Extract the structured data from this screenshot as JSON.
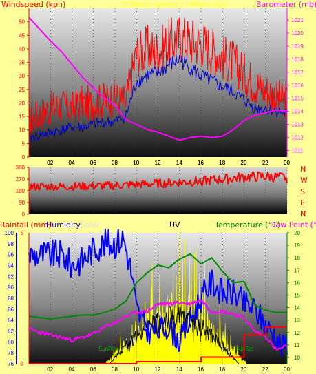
{
  "top_chart": {
    "windspeed_label": "Windspeed (kph)",
    "overlay_label": "10 Minute Average / 1 Minute Gust",
    "barometer_label": "Barometer (mb)",
    "colors": {
      "gust": "#ff0000",
      "avg": "#0000cc",
      "baro": "#ff00ff"
    }
  },
  "dir_chart": {
    "letters": [
      "N",
      "W",
      "S",
      "E",
      "N"
    ]
  },
  "bottom_chart": {
    "rainfall_label": "Rainfall (mm)",
    "humidity_label": "Humidity",
    "solar_label": "Solar",
    "uv_label": "UV",
    "temperature_label": "Temperature (°C)",
    "dewpoint_label": "Dew Point (°C)",
    "sunrise_label": "SunRise",
    "sunset_label": "SunSet"
  },
  "chart_data": [
    {
      "type": "line",
      "title": "",
      "x_ticks": [
        "02",
        "04",
        "06",
        "08",
        "10",
        "12",
        "14",
        "16",
        "18",
        "20",
        "22",
        "00"
      ],
      "y_left_ticks": [
        "0",
        "5",
        "10",
        "15",
        "20",
        "25",
        "30",
        "35",
        "40",
        "45",
        "50"
      ],
      "ylim_left": [
        0,
        55
      ],
      "y_right_ticks": [
        "1011",
        "1012",
        "1013",
        "1014",
        "1015",
        "1016",
        "1017",
        "1018",
        "1019",
        "1020",
        "1021"
      ],
      "ylim_right": [
        1010.5,
        1021.9
      ],
      "xlim": [
        0,
        24
      ],
      "series": [
        {
          "name": "Windspeed",
          "axis": "left",
          "x": [
            0,
            1,
            2,
            3,
            4,
            5,
            6,
            7,
            8,
            9,
            9.5,
            10,
            11,
            12,
            13,
            14,
            15,
            16,
            17,
            18,
            19,
            20,
            21,
            22,
            23,
            24
          ],
          "values": [
            13,
            16,
            18,
            19,
            18,
            20,
            20,
            21,
            22,
            20,
            30,
            38,
            40,
            39,
            42,
            44,
            43,
            42,
            40,
            37,
            35,
            31,
            27,
            25,
            22,
            21
          ]
        },
        {
          "name": "Gust",
          "axis": "left",
          "x": [
            0,
            1,
            2,
            3,
            4,
            5,
            6,
            7,
            8,
            9,
            10,
            11,
            12,
            13,
            14,
            15,
            16,
            17,
            18,
            19,
            20,
            21,
            22,
            23,
            24
          ],
          "values": [
            7,
            8,
            9,
            10,
            11,
            11,
            12,
            13,
            13,
            15,
            28,
            30,
            31,
            34,
            36,
            33,
            30,
            28,
            26,
            24,
            21,
            18,
            18,
            17,
            16
          ]
        },
        {
          "name": "Barometer",
          "axis": "right",
          "x": [
            0,
            1,
            2,
            3,
            4,
            5,
            6,
            7,
            8,
            9,
            10,
            11,
            12,
            13,
            14,
            15,
            16,
            17,
            18,
            19,
            20,
            21,
            22,
            23,
            24
          ],
          "values": [
            1021.2,
            1020.3,
            1019.4,
            1018.6,
            1017.6,
            1016.6,
            1015.8,
            1015.0,
            1014.5,
            1013.4,
            1013.0,
            1012.6,
            1012.4,
            1012.1,
            1011.8,
            1012.0,
            1012.1,
            1012.0,
            1012.1,
            1012.6,
            1013.3,
            1013.7,
            1013.9,
            1014.1,
            1014.0
          ]
        }
      ]
    },
    {
      "type": "line",
      "title": "",
      "y_ticks": [
        "0",
        "90",
        "180",
        "270",
        "360"
      ],
      "ylim": [
        0,
        360
      ],
      "xlim": [
        0,
        24
      ],
      "series": [
        {
          "name": "Direction",
          "x": [
            0,
            4,
            8,
            12,
            14,
            16,
            18,
            20,
            22,
            24
          ],
          "values": [
            210,
            213,
            220,
            235,
            245,
            255,
            268,
            285,
            290,
            280
          ]
        }
      ]
    },
    {
      "type": "line",
      "title": "",
      "x_ticks": [
        "02",
        "04",
        "06",
        "08",
        "10",
        "12",
        "14",
        "16",
        "18",
        "20",
        "22",
        "00"
      ],
      "y_humidity_ticks": [
        "76",
        "78",
        "80",
        "82",
        "84",
        "86",
        "88",
        "90",
        "92",
        "94",
        "96",
        "98",
        "100"
      ],
      "ylim_humidity": [
        76,
        100
      ],
      "y_temp_ticks": [
        "10",
        "11",
        "12",
        "13",
        "14",
        "15",
        "16",
        "17",
        "18",
        "19",
        "20"
      ],
      "ylim_temp": [
        9.5,
        20
      ],
      "ylim_rain": [
        0,
        5
      ],
      "xlim": [
        0,
        24
      ],
      "series": [
        {
          "name": "Humidity",
          "axis": "humidity",
          "x": [
            0,
            1,
            2,
            3,
            4,
            5,
            6,
            7,
            8,
            8.8,
            9.5,
            10,
            11,
            12,
            13,
            14,
            15,
            16,
            17,
            18,
            19,
            20,
            21,
            22,
            23,
            23.5,
            24
          ],
          "values": [
            96,
            96,
            96,
            96,
            94,
            95,
            97,
            98,
            98,
            99,
            93,
            86,
            82,
            82,
            83,
            80,
            84,
            88,
            91,
            89,
            89,
            87,
            86,
            83,
            81,
            79,
            80
          ]
        },
        {
          "name": "Temperature",
          "axis": "temp",
          "x": [
            0,
            1,
            2,
            3,
            4,
            5,
            6,
            7,
            8,
            9,
            10,
            11,
            12,
            13,
            14,
            15,
            16,
            17,
            18,
            19,
            20,
            21,
            22,
            23,
            24
          ],
          "values": [
            13.3,
            13.2,
            13.1,
            13.2,
            13.3,
            13.4,
            13.4,
            13.6,
            13.9,
            14.5,
            16.0,
            16.8,
            17.4,
            17.2,
            17.9,
            18.3,
            17.5,
            18.0,
            16.9,
            16.0,
            16.1,
            14.2,
            13.8,
            13.6,
            13.6
          ]
        },
        {
          "name": "Dew Point",
          "axis": "temp",
          "x": [
            0,
            1,
            2,
            3,
            4,
            5,
            6,
            7,
            8,
            9,
            10,
            11,
            12,
            13,
            14,
            15,
            16,
            17,
            18,
            19,
            20,
            21,
            22,
            23,
            24
          ],
          "values": [
            12.3,
            12.0,
            11.8,
            11.6,
            11.4,
            11.6,
            11.9,
            12.4,
            12.8,
            13.3,
            13.6,
            13.7,
            14.3,
            14.3,
            14.4,
            14.3,
            14.6,
            13.7,
            13.7,
            13.5,
            13.2,
            12.1,
            11.7,
            10.6,
            10.9
          ]
        },
        {
          "name": "Rainfall",
          "axis": "rain",
          "x": [
            0,
            8,
            10,
            14,
            16,
            19,
            20,
            22,
            24
          ],
          "values": [
            0,
            0,
            0.08,
            0.08,
            0.25,
            0.25,
            1.1,
            1.4,
            1.4
          ]
        }
      ]
    }
  ]
}
